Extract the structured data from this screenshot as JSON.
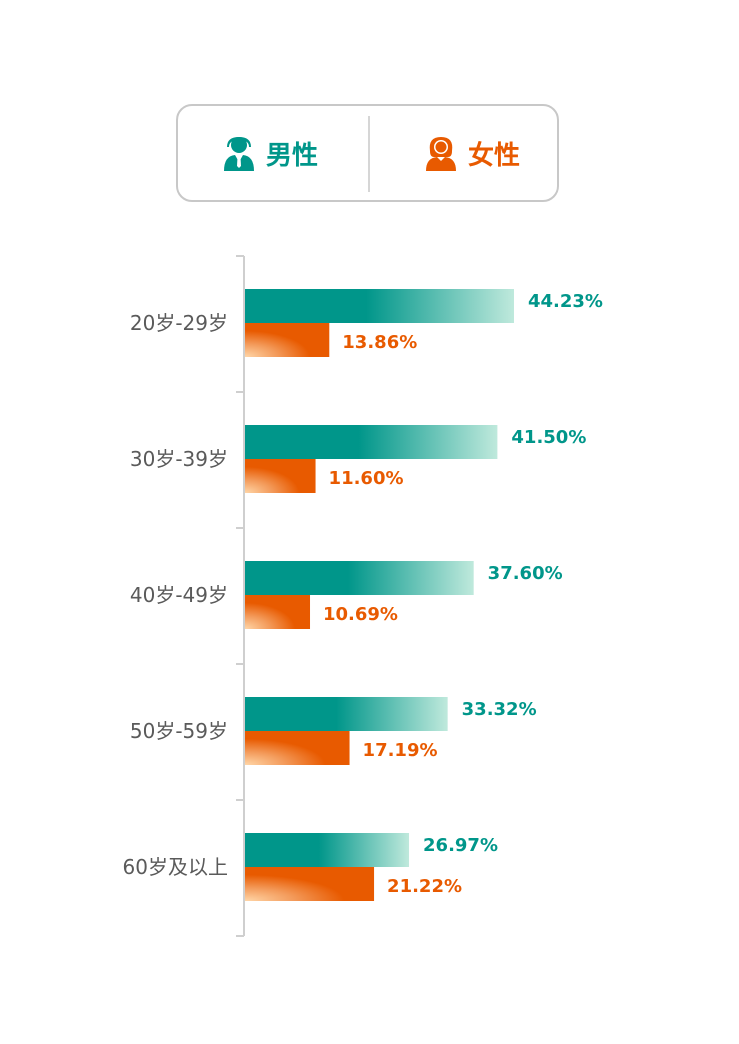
{
  "legend": {
    "male_label": "男性",
    "female_label": "女性"
  },
  "colors": {
    "male": "#00968a",
    "female": "#e85a00"
  },
  "chart_data": {
    "type": "bar",
    "orientation": "horizontal",
    "categories": [
      "20岁-29岁",
      "30岁-39岁",
      "40岁-49岁",
      "50岁-59岁",
      "60岁及以上"
    ],
    "series": [
      {
        "name": "男性",
        "values": [
          44.23,
          41.5,
          37.6,
          33.32,
          26.97
        ],
        "labels": [
          "44.23%",
          "41.50%",
          "37.60%",
          "33.32%",
          "26.97%"
        ]
      },
      {
        "name": "女性",
        "values": [
          13.86,
          11.6,
          10.69,
          17.19,
          21.22
        ],
        "labels": [
          "13.86%",
          "11.60%",
          "10.69%",
          "17.19%",
          "21.22%"
        ]
      }
    ],
    "unit": "%",
    "legend_position": "top",
    "grid": false
  }
}
